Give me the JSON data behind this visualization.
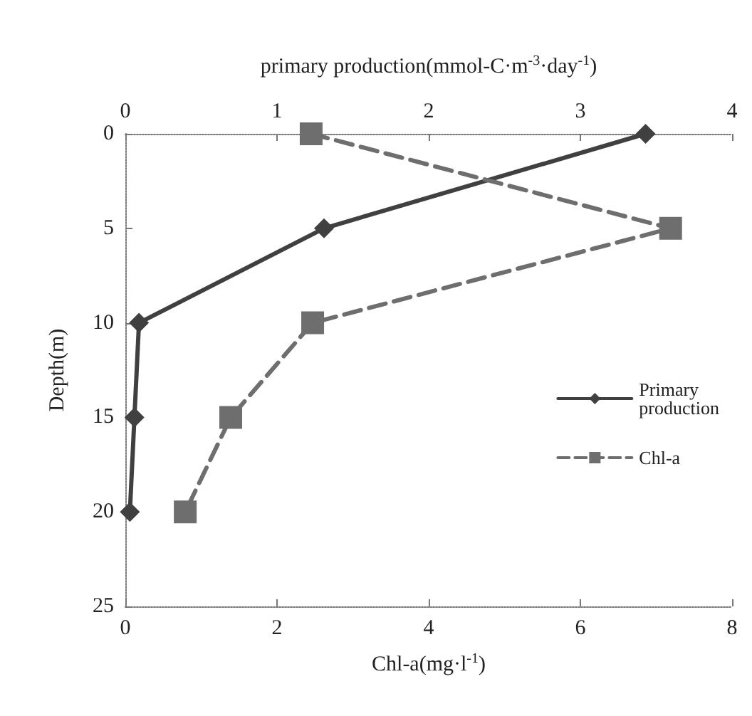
{
  "chart_data": {
    "type": "line",
    "orientation": "horizontal",
    "xlabel": "Chl-a(mg·l$^{-1}$)",
    "x2label": "primary production(mmol-C·m$^{-3}$·day$^{-1}$)",
    "ylabel": "Depth(m)",
    "x": [
      0,
      5,
      10,
      15,
      20
    ],
    "series": [
      {
        "name": "Primary production",
        "axis": "x2",
        "color": "#404040",
        "marker": "diamond",
        "line_style": "solid",
        "values": [
          3.43,
          1.31,
          0.09,
          0.06,
          0.03
        ]
      },
      {
        "name": "Chl-a",
        "color": "#6e6e6e",
        "marker": "square",
        "line_style": "dashed",
        "values": [
          2.45,
          7.19,
          2.47,
          1.39,
          0.79
        ]
      }
    ],
    "xlim": [
      0,
      8
    ],
    "xticks": [
      0,
      2,
      4,
      6,
      8
    ],
    "x2lim": [
      0,
      4
    ],
    "x2ticks": [
      0,
      1,
      2,
      3,
      4
    ],
    "ylim": [
      25,
      0
    ],
    "yticks": [
      0,
      5,
      10,
      15,
      20,
      25
    ],
    "grid": false,
    "legend": "right"
  }
}
